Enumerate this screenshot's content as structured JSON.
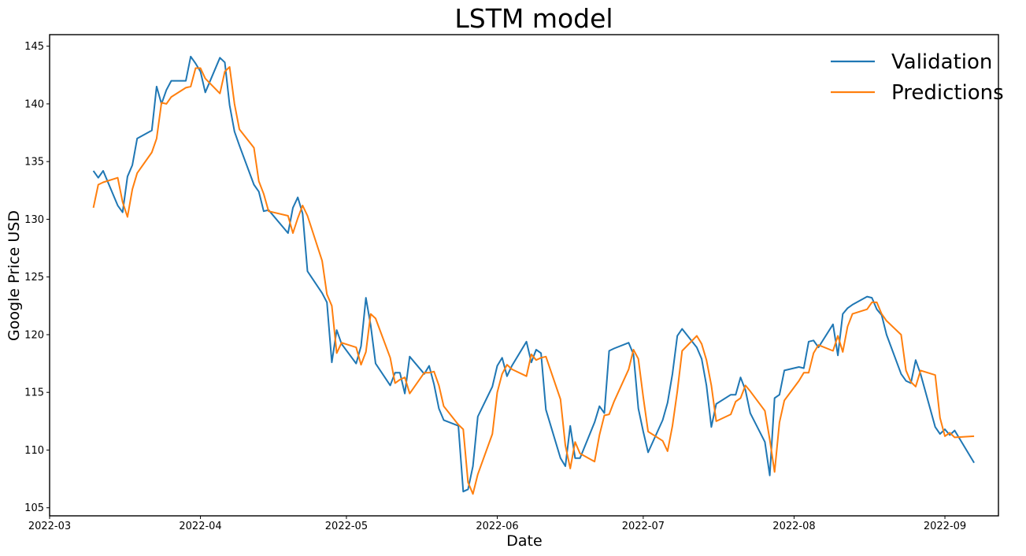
{
  "chart_data": {
    "type": "line",
    "title": "LSTM model",
    "xlabel": "Date",
    "ylabel": "Google Price USD",
    "ylim": [
      104.3,
      146
    ],
    "xlim": [
      "2022-03-01",
      "2022-09-12"
    ],
    "grid": false,
    "legend_position": "top-right",
    "x_ticks": [
      "2022-03",
      "2022-04",
      "2022-05",
      "2022-06",
      "2022-07",
      "2022-08",
      "2022-09"
    ],
    "y_ticks": [
      "105",
      "110",
      "115",
      "120",
      "125",
      "130",
      "135",
      "140",
      "145"
    ],
    "series": [
      {
        "name": "Validation",
        "color": "#1f77b4",
        "points": [
          [
            "2022-03-10",
            134.2
          ],
          [
            "2022-03-11",
            133.6
          ],
          [
            "2022-03-12",
            134.2
          ],
          [
            "2022-03-15",
            131.2
          ],
          [
            "2022-03-16",
            130.6
          ],
          [
            "2022-03-17",
            133.7
          ],
          [
            "2022-03-18",
            134.7
          ],
          [
            "2022-03-19",
            137.0
          ],
          [
            "2022-03-22",
            137.7
          ],
          [
            "2022-03-23",
            141.5
          ],
          [
            "2022-03-24",
            140.0
          ],
          [
            "2022-03-25",
            141.2
          ],
          [
            "2022-03-26",
            142.0
          ],
          [
            "2022-03-29",
            142.0
          ],
          [
            "2022-03-30",
            144.1
          ],
          [
            "2022-03-31",
            143.5
          ],
          [
            "2022-04-01",
            142.8
          ],
          [
            "2022-04-02",
            141.0
          ],
          [
            "2022-04-05",
            144.0
          ],
          [
            "2022-04-06",
            143.6
          ],
          [
            "2022-04-07",
            139.9
          ],
          [
            "2022-04-08",
            137.6
          ],
          [
            "2022-04-09",
            136.4
          ],
          [
            "2022-04-12",
            133.0
          ],
          [
            "2022-04-13",
            132.4
          ],
          [
            "2022-04-14",
            130.7
          ],
          [
            "2022-04-15",
            130.8
          ],
          [
            "2022-04-19",
            128.8
          ],
          [
            "2022-04-20",
            131.0
          ],
          [
            "2022-04-21",
            131.9
          ],
          [
            "2022-04-22",
            130.5
          ],
          [
            "2022-04-23",
            125.5
          ],
          [
            "2022-04-26",
            123.6
          ],
          [
            "2022-04-27",
            122.8
          ],
          [
            "2022-04-28",
            117.6
          ],
          [
            "2022-04-29",
            120.4
          ],
          [
            "2022-04-30",
            119.2
          ],
          [
            "2022-05-03",
            117.5
          ],
          [
            "2022-05-04",
            119.0
          ],
          [
            "2022-05-05",
            123.2
          ],
          [
            "2022-05-06",
            120.8
          ],
          [
            "2022-05-07",
            117.5
          ],
          [
            "2022-05-10",
            115.6
          ],
          [
            "2022-05-11",
            116.7
          ],
          [
            "2022-05-12",
            116.7
          ],
          [
            "2022-05-13",
            114.9
          ],
          [
            "2022-05-14",
            118.1
          ],
          [
            "2022-05-17",
            116.6
          ],
          [
            "2022-05-18",
            117.3
          ],
          [
            "2022-05-19",
            115.7
          ],
          [
            "2022-05-20",
            113.6
          ],
          [
            "2022-05-21",
            112.6
          ],
          [
            "2022-05-24",
            112.1
          ],
          [
            "2022-05-25",
            106.4
          ],
          [
            "2022-05-26",
            106.6
          ],
          [
            "2022-05-27",
            108.6
          ],
          [
            "2022-05-28",
            112.9
          ],
          [
            "2022-05-31",
            115.5
          ],
          [
            "2022-06-01",
            117.3
          ],
          [
            "2022-06-02",
            118.0
          ],
          [
            "2022-06-03",
            116.4
          ],
          [
            "2022-06-04",
            117.3
          ],
          [
            "2022-06-07",
            119.4
          ],
          [
            "2022-06-08",
            117.6
          ],
          [
            "2022-06-09",
            118.7
          ],
          [
            "2022-06-10",
            118.4
          ],
          [
            "2022-06-11",
            113.5
          ],
          [
            "2022-06-14",
            109.3
          ],
          [
            "2022-06-15",
            108.6
          ],
          [
            "2022-06-16",
            112.1
          ],
          [
            "2022-06-17",
            109.3
          ],
          [
            "2022-06-18",
            109.3
          ],
          [
            "2022-06-21",
            112.4
          ],
          [
            "2022-06-22",
            113.8
          ],
          [
            "2022-06-23",
            113.2
          ],
          [
            "2022-06-24",
            118.6
          ],
          [
            "2022-06-25",
            118.8
          ],
          [
            "2022-06-28",
            119.3
          ],
          [
            "2022-06-29",
            118.3
          ],
          [
            "2022-06-30",
            113.6
          ],
          [
            "2022-07-01",
            111.6
          ],
          [
            "2022-07-02",
            109.8
          ],
          [
            "2022-07-05",
            112.6
          ],
          [
            "2022-07-06",
            114.1
          ],
          [
            "2022-07-07",
            116.6
          ],
          [
            "2022-07-08",
            119.9
          ],
          [
            "2022-07-09",
            120.5
          ],
          [
            "2022-07-12",
            118.9
          ],
          [
            "2022-07-13",
            117.9
          ],
          [
            "2022-07-14",
            115.6
          ],
          [
            "2022-07-15",
            112.0
          ],
          [
            "2022-07-16",
            114.0
          ],
          [
            "2022-07-19",
            114.8
          ],
          [
            "2022-07-20",
            114.8
          ],
          [
            "2022-07-21",
            116.3
          ],
          [
            "2022-07-22",
            115.2
          ],
          [
            "2022-07-23",
            113.2
          ],
          [
            "2022-07-26",
            110.7
          ],
          [
            "2022-07-27",
            107.8
          ],
          [
            "2022-07-28",
            114.5
          ],
          [
            "2022-07-29",
            114.8
          ],
          [
            "2022-07-30",
            116.9
          ],
          [
            "2022-08-02",
            117.2
          ],
          [
            "2022-08-03",
            117.1
          ],
          [
            "2022-08-04",
            119.4
          ],
          [
            "2022-08-05",
            119.5
          ],
          [
            "2022-08-06",
            118.9
          ],
          [
            "2022-08-09",
            120.9
          ],
          [
            "2022-08-10",
            118.2
          ],
          [
            "2022-08-11",
            121.8
          ],
          [
            "2022-08-12",
            122.3
          ],
          [
            "2022-08-13",
            122.6
          ],
          [
            "2022-08-16",
            123.3
          ],
          [
            "2022-08-17",
            123.2
          ],
          [
            "2022-08-18",
            122.2
          ],
          [
            "2022-08-19",
            121.7
          ],
          [
            "2022-08-20",
            120.0
          ],
          [
            "2022-08-23",
            116.6
          ],
          [
            "2022-08-24",
            116.0
          ],
          [
            "2022-08-25",
            115.8
          ],
          [
            "2022-08-26",
            117.8
          ],
          [
            "2022-08-27",
            116.6
          ],
          [
            "2022-08-30",
            112.0
          ],
          [
            "2022-08-31",
            111.4
          ],
          [
            "2022-09-01",
            111.8
          ],
          [
            "2022-09-02",
            111.3
          ],
          [
            "2022-09-03",
            111.7
          ],
          [
            "2022-09-07",
            108.9
          ]
        ]
      },
      {
        "name": "Predictions",
        "color": "#ff7f0e",
        "points": [
          [
            "2022-03-10",
            131.0
          ],
          [
            "2022-03-11",
            133.0
          ],
          [
            "2022-03-12",
            133.2
          ],
          [
            "2022-03-15",
            133.6
          ],
          [
            "2022-03-16",
            131.5
          ],
          [
            "2022-03-17",
            130.2
          ],
          [
            "2022-03-18",
            132.6
          ],
          [
            "2022-03-19",
            134.0
          ],
          [
            "2022-03-22",
            135.8
          ],
          [
            "2022-03-23",
            137.0
          ],
          [
            "2022-03-24",
            140.1
          ],
          [
            "2022-03-25",
            140.0
          ],
          [
            "2022-03-26",
            140.6
          ],
          [
            "2022-03-29",
            141.4
          ],
          [
            "2022-03-30",
            141.5
          ],
          [
            "2022-03-31",
            143.1
          ],
          [
            "2022-04-01",
            143.1
          ],
          [
            "2022-04-02",
            142.2
          ],
          [
            "2022-04-05",
            140.9
          ],
          [
            "2022-04-06",
            142.8
          ],
          [
            "2022-04-07",
            143.2
          ],
          [
            "2022-04-08",
            140.0
          ],
          [
            "2022-04-09",
            137.8
          ],
          [
            "2022-04-12",
            136.2
          ],
          [
            "2022-04-13",
            133.3
          ],
          [
            "2022-04-14",
            132.2
          ],
          [
            "2022-04-15",
            130.7
          ],
          [
            "2022-04-19",
            130.3
          ],
          [
            "2022-04-20",
            128.8
          ],
          [
            "2022-04-21",
            130.1
          ],
          [
            "2022-04-22",
            131.2
          ],
          [
            "2022-04-23",
            130.3
          ],
          [
            "2022-04-26",
            126.4
          ],
          [
            "2022-04-27",
            123.5
          ],
          [
            "2022-04-28",
            122.5
          ],
          [
            "2022-04-29",
            118.4
          ],
          [
            "2022-04-30",
            119.3
          ],
          [
            "2022-05-03",
            118.9
          ],
          [
            "2022-05-04",
            117.4
          ],
          [
            "2022-05-05",
            118.5
          ],
          [
            "2022-05-06",
            121.8
          ],
          [
            "2022-05-07",
            121.4
          ],
          [
            "2022-05-10",
            118.0
          ],
          [
            "2022-05-11",
            115.8
          ],
          [
            "2022-05-12",
            116.1
          ],
          [
            "2022-05-13",
            116.3
          ],
          [
            "2022-05-14",
            114.9
          ],
          [
            "2022-05-17",
            116.7
          ],
          [
            "2022-05-18",
            116.7
          ],
          [
            "2022-05-19",
            116.8
          ],
          [
            "2022-05-20",
            115.6
          ],
          [
            "2022-05-21",
            113.8
          ],
          [
            "2022-05-24",
            112.2
          ],
          [
            "2022-05-25",
            111.8
          ],
          [
            "2022-05-26",
            107.2
          ],
          [
            "2022-05-27",
            106.2
          ],
          [
            "2022-05-28",
            107.9
          ],
          [
            "2022-05-31",
            111.4
          ],
          [
            "2022-06-01",
            115.0
          ],
          [
            "2022-06-02",
            116.6
          ],
          [
            "2022-06-03",
            117.4
          ],
          [
            "2022-06-04",
            117.0
          ],
          [
            "2022-06-07",
            116.4
          ],
          [
            "2022-06-08",
            118.3
          ],
          [
            "2022-06-09",
            117.8
          ],
          [
            "2022-06-10",
            118.0
          ],
          [
            "2022-06-11",
            118.1
          ],
          [
            "2022-06-14",
            114.4
          ],
          [
            "2022-06-15",
            110.4
          ],
          [
            "2022-06-16",
            108.4
          ],
          [
            "2022-06-17",
            110.7
          ],
          [
            "2022-06-18",
            109.7
          ],
          [
            "2022-06-21",
            109.0
          ],
          [
            "2022-06-22",
            111.3
          ],
          [
            "2022-06-23",
            113.0
          ],
          [
            "2022-06-24",
            113.1
          ],
          [
            "2022-06-25",
            114.2
          ],
          [
            "2022-06-28",
            117.0
          ],
          [
            "2022-06-29",
            118.7
          ],
          [
            "2022-06-30",
            117.9
          ],
          [
            "2022-07-01",
            114.6
          ],
          [
            "2022-07-02",
            111.6
          ],
          [
            "2022-07-05",
            110.8
          ],
          [
            "2022-07-06",
            109.9
          ],
          [
            "2022-07-07",
            112.1
          ],
          [
            "2022-07-08",
            115.1
          ],
          [
            "2022-07-09",
            118.6
          ],
          [
            "2022-07-12",
            119.9
          ],
          [
            "2022-07-13",
            119.2
          ],
          [
            "2022-07-14",
            117.8
          ],
          [
            "2022-07-15",
            115.6
          ],
          [
            "2022-07-16",
            112.5
          ],
          [
            "2022-07-19",
            113.1
          ],
          [
            "2022-07-20",
            114.2
          ],
          [
            "2022-07-21",
            114.5
          ],
          [
            "2022-07-22",
            115.6
          ],
          [
            "2022-07-23",
            115.1
          ],
          [
            "2022-07-26",
            113.4
          ],
          [
            "2022-07-27",
            110.9
          ],
          [
            "2022-07-28",
            108.1
          ],
          [
            "2022-07-29",
            112.4
          ],
          [
            "2022-07-30",
            114.3
          ],
          [
            "2022-08-02",
            116.0
          ],
          [
            "2022-08-03",
            116.7
          ],
          [
            "2022-08-04",
            116.7
          ],
          [
            "2022-08-05",
            118.4
          ],
          [
            "2022-08-06",
            119.1
          ],
          [
            "2022-08-09",
            118.6
          ],
          [
            "2022-08-10",
            119.9
          ],
          [
            "2022-08-11",
            118.5
          ],
          [
            "2022-08-12",
            120.7
          ],
          [
            "2022-08-13",
            121.8
          ],
          [
            "2022-08-16",
            122.2
          ],
          [
            "2022-08-17",
            122.8
          ],
          [
            "2022-08-18",
            122.8
          ],
          [
            "2022-08-19",
            121.8
          ],
          [
            "2022-08-20",
            121.2
          ],
          [
            "2022-08-23",
            120.0
          ],
          [
            "2022-08-24",
            116.9
          ],
          [
            "2022-08-25",
            115.9
          ],
          [
            "2022-08-26",
            115.5
          ],
          [
            "2022-08-27",
            116.9
          ],
          [
            "2022-08-30",
            116.5
          ],
          [
            "2022-08-31",
            112.8
          ],
          [
            "2022-09-01",
            111.2
          ],
          [
            "2022-09-02",
            111.5
          ],
          [
            "2022-09-03",
            111.1
          ],
          [
            "2022-09-07",
            111.2
          ]
        ]
      }
    ]
  }
}
